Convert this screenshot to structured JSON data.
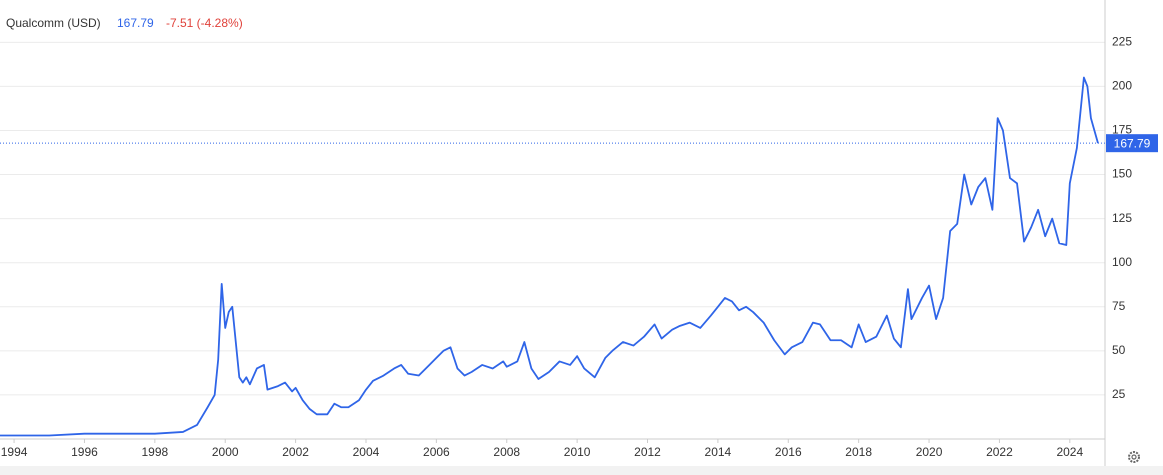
{
  "chart_data": {
    "type": "line",
    "title": "Qualcomm (USD)",
    "price": 167.79,
    "change": "-7.51 (-4.28%)",
    "color": "#2f65e8",
    "price_color": "#2f65e8",
    "change_color": "#e0413a",
    "grid": true,
    "xlim": [
      1993.6,
      2025.0
    ],
    "xticks": [
      1994,
      1996,
      1998,
      2000,
      2002,
      2004,
      2006,
      2008,
      2010,
      2012,
      2014,
      2016,
      2018,
      2020,
      2022,
      2024
    ],
    "ylim": [
      0,
      249
    ],
    "yticks": [
      25,
      50,
      75,
      100,
      125,
      150,
      175,
      200,
      225
    ],
    "series": [
      {
        "name": "Qualcomm (USD)",
        "color": "#2f65e8",
        "x": [
          1993.6,
          1994,
          1995,
          1996,
          1997,
          1998,
          1998.8,
          1999.2,
          1999.5,
          1999.7,
          1999.8,
          1999.9,
          2000.0,
          2000.1,
          2000.2,
          2000.4,
          2000.5,
          2000.6,
          2000.7,
          2000.9,
          2001.1,
          2001.2,
          2001.5,
          2001.7,
          2001.9,
          2002.0,
          2002.2,
          2002.4,
          2002.6,
          2002.9,
          2003.1,
          2003.3,
          2003.5,
          2003.8,
          2004.0,
          2004.2,
          2004.5,
          2004.8,
          2005.0,
          2005.2,
          2005.5,
          2005.8,
          2006.0,
          2006.2,
          2006.4,
          2006.6,
          2006.8,
          2007.0,
          2007.3,
          2007.6,
          2007.9,
          2008.0,
          2008.3,
          2008.5,
          2008.7,
          2008.9,
          2009.2,
          2009.5,
          2009.8,
          2010.0,
          2010.2,
          2010.5,
          2010.8,
          2011.0,
          2011.3,
          2011.6,
          2011.9,
          2012.2,
          2012.4,
          2012.7,
          2012.9,
          2013.2,
          2013.5,
          2013.8,
          2014.0,
          2014.2,
          2014.4,
          2014.6,
          2014.8,
          2015.0,
          2015.3,
          2015.6,
          2015.9,
          2016.1,
          2016.4,
          2016.7,
          2016.9,
          2017.2,
          2017.5,
          2017.8,
          2018.0,
          2018.2,
          2018.5,
          2018.8,
          2019.0,
          2019.2,
          2019.4,
          2019.5,
          2019.8,
          2020.0,
          2020.2,
          2020.4,
          2020.6,
          2020.8,
          2021.0,
          2021.2,
          2021.4,
          2021.6,
          2021.8,
          2021.95,
          2022.1,
          2022.3,
          2022.5,
          2022.7,
          2022.9,
          2023.1,
          2023.3,
          2023.5,
          2023.7,
          2023.9,
          2024.0,
          2024.2,
          2024.4,
          2024.5,
          2024.6,
          2024.8
        ],
        "values": [
          2,
          2,
          2,
          3,
          3,
          3,
          4,
          8,
          18,
          25,
          45,
          88,
          63,
          72,
          75,
          35,
          32,
          35,
          31,
          40,
          42,
          28,
          30,
          32,
          27,
          29,
          22,
          17,
          14,
          14,
          20,
          18,
          18,
          22,
          28,
          33,
          36,
          40,
          42,
          37,
          36,
          42,
          46,
          50,
          52,
          40,
          36,
          38,
          42,
          40,
          44,
          41,
          44,
          55,
          40,
          34,
          38,
          44,
          42,
          47,
          40,
          35,
          46,
          50,
          55,
          53,
          58,
          65,
          57,
          62,
          64,
          66,
          63,
          70,
          75,
          80,
          78,
          73,
          75,
          72,
          66,
          56,
          48,
          52,
          55,
          66,
          65,
          56,
          56,
          52,
          65,
          55,
          58,
          70,
          57,
          52,
          85,
          68,
          80,
          87,
          68,
          80,
          118,
          122,
          150,
          133,
          143,
          148,
          130,
          182,
          175,
          148,
          145,
          112,
          120,
          130,
          115,
          125,
          111,
          110,
          145,
          165,
          205,
          200,
          182,
          167.79
        ]
      }
    ]
  }
}
